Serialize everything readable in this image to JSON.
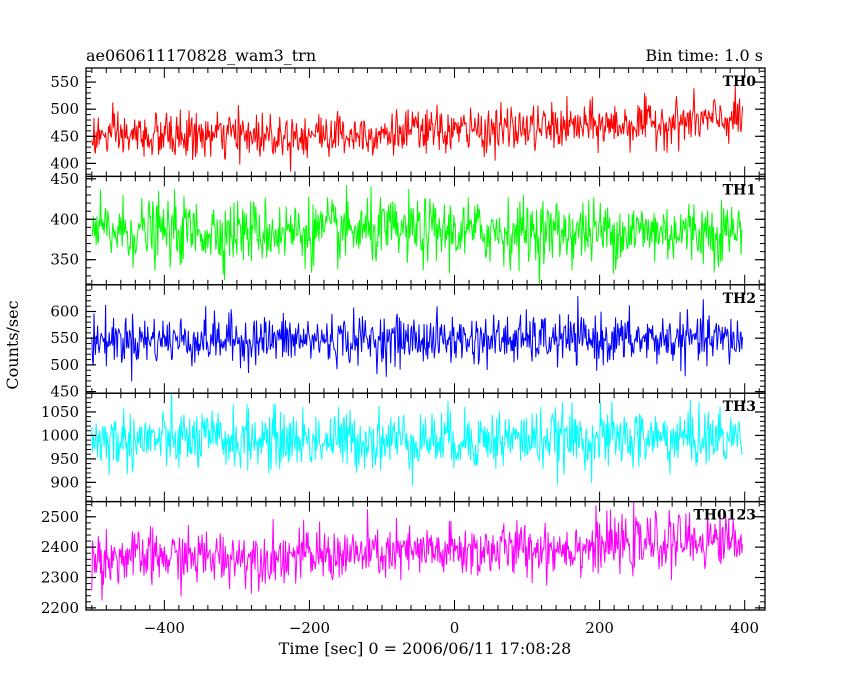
{
  "header": {
    "title": "ae060611170828_wam3_trn",
    "bin_time": "Bin time: 1.0 s"
  },
  "chart_data": {
    "type": "line",
    "xlabel": "Time [sec] 0 = 2006/06/11 17:08:28",
    "ylabel": "Counts/sec",
    "xlim": [
      -508,
      428
    ],
    "x_ticks": [
      -400,
      -200,
      0,
      200,
      400
    ],
    "x_start": -500,
    "x_end": 397,
    "bin_time_s": 1.0,
    "panels": [
      {
        "name": "TH0",
        "color": "#ff0000",
        "ylim": [
          376,
          576
        ],
        "y_ticks": [
          400,
          450,
          500,
          550
        ],
        "mean_start": 450,
        "mean_end": 482,
        "noise": 21
      },
      {
        "name": "TH1",
        "color": "#00ff00",
        "ylim": [
          319,
          453
        ],
        "y_ticks": [
          350,
          400,
          450
        ],
        "mean_start": 385,
        "mean_end": 385,
        "noise": 20
      },
      {
        "name": "TH2",
        "color": "#0000ff",
        "ylim": [
          447,
          650
        ],
        "y_ticks": [
          450,
          500,
          550,
          600
        ],
        "mean_start": 547,
        "mean_end": 547,
        "noise": 23
      },
      {
        "name": "TH3",
        "color": "#00ffff",
        "ylim": [
          859,
          1090
        ],
        "y_ticks": [
          900,
          950,
          1000,
          1050
        ],
        "mean_start": 990,
        "mean_end": 995,
        "noise": 32
      },
      {
        "name": "TH0123",
        "color": "#ff00ff",
        "ylim": [
          2193,
          2550
        ],
        "y_ticks": [
          2200,
          2300,
          2400,
          2500
        ],
        "mean_start": 2365,
        "mean_end": 2430,
        "noise": 45
      }
    ]
  }
}
